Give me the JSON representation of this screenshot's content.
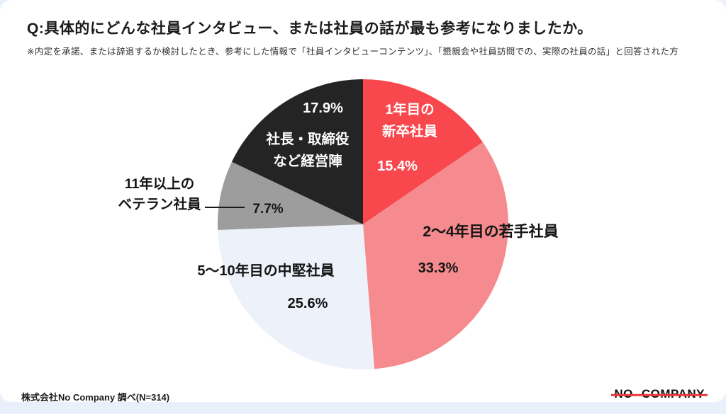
{
  "header": {
    "title": "Q:具体的にどんな社員インタビュー、または社員の話が最も参考になりましたか。",
    "subtitle": "※内定を承諾、または辞退するか検討したとき、参考にした情報で「社員インタビューコンテンツ」、「懇親会や社員訪問での、実際の社員の話」と回答された方"
  },
  "chart_data": {
    "type": "pie",
    "title": "具体的にどんな社員インタビュー、または社員の話が最も参考になりましたか",
    "start_angle_deg": 0,
    "direction": "clockwise",
    "legend": "none",
    "slices": [
      {
        "label": "1年目の新卒社員",
        "value": 15.4,
        "color": "#f8484e",
        "text_color": "#ffffff"
      },
      {
        "label": "2〜4年目の若手社員",
        "value": 33.3,
        "color": "#f58b8e",
        "text_color": "#141414"
      },
      {
        "label": "5〜10年目の中堅社員",
        "value": 25.6,
        "color": "#edf1fa",
        "text_color": "#141414"
      },
      {
        "label": "11年以上のベテラン社員",
        "value": 7.7,
        "color": "#9d9d9d",
        "text_color": "#141414"
      },
      {
        "label": "社長・取締役など経営陣",
        "value": 17.9,
        "color": "#242424",
        "text_color": "#ffffff"
      }
    ]
  },
  "callouts": {
    "newgrad": {
      "line1": "1年目の",
      "line2": "新卒社員",
      "pct": "15.4%"
    },
    "young": {
      "line1": "2〜4年目の若手社員",
      "pct": "33.3%"
    },
    "mid": {
      "line1": "5〜10年目の中堅社員",
      "pct": "25.6%"
    },
    "veteran": {
      "line1": "11年以上の",
      "line2": "ベテラン社員",
      "pct": "7.7%"
    },
    "executive": {
      "line1": "社長・取締役",
      "line2": "など経営陣",
      "pct": "17.9%"
    }
  },
  "footer": {
    "source": "株式会社No Company 調べ(N=314)",
    "logo_no": "NO",
    "logo_company": "COMPANY"
  }
}
